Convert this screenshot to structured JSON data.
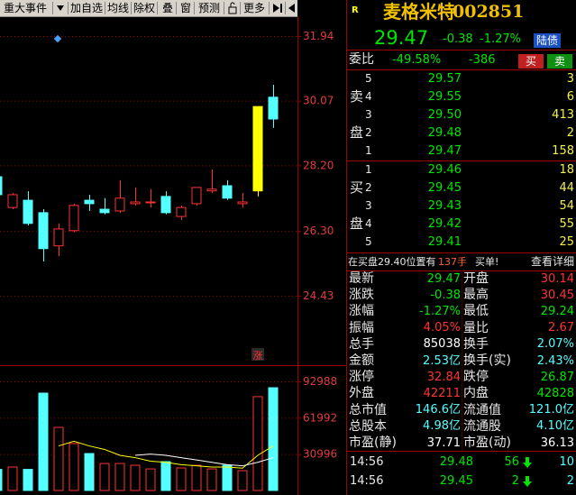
{
  "toolbar": [
    "重大事件",
    "加自选",
    "均线",
    "除权",
    "叠",
    "窗",
    "预测",
    "更多"
  ],
  "chart_data": [
    {
      "type": "candlestick",
      "open": [
        27.87,
        26.98,
        27.19,
        26.83,
        25.87,
        26.31,
        27.19,
        26.93,
        26.88,
        27.09,
        27.14,
        27.3,
        26.72,
        27.09,
        27.46,
        27.61,
        27.09,
        27.46,
        30.17
      ],
      "high": [
        28.08,
        27.4,
        27.45,
        26.93,
        26.52,
        27.09,
        27.35,
        27.25,
        27.77,
        27.56,
        27.51,
        27.45,
        27.04,
        27.56,
        28.08,
        27.77,
        27.4,
        29.9,
        30.53
      ],
      "low": [
        27.3,
        26.93,
        26.46,
        25.42,
        25.58,
        26.26,
        26.88,
        26.78,
        26.83,
        27.04,
        26.98,
        26.78,
        26.62,
        27.04,
        27.4,
        27.2,
        26.98,
        27.3,
        29.28
      ],
      "close": [
        27.35,
        27.35,
        26.52,
        25.79,
        26.36,
        27.04,
        27.09,
        26.83,
        27.25,
        27.14,
        27.14,
        26.83,
        26.98,
        27.56,
        27.51,
        27.25,
        27.14,
        29.9,
        29.54
      ],
      "colors": [
        "#54ffff",
        "#ff3232",
        "#54ffff",
        "#54ffff",
        "#ff3232",
        "#ff3232",
        "#54ffff",
        "#54ffff",
        "#ff3232",
        "#ff3232",
        "#ff3232",
        "#54ffff",
        "#ff3232",
        "#ff3232",
        "#ff3232",
        "#54ffff",
        "#ff3232",
        "#ffff00",
        "#54ffff"
      ],
      "up_color": "#ff3232",
      "annotation": "涨",
      "ylim": [
        22.55,
        32.46
      ],
      "yticks": [
        31.94,
        30.07,
        {
          "value": 28.2,
          "label": "28.20"
        },
        {
          "value": 26.3,
          "label": "26.30"
        },
        24.43
      ],
      "grid": true
    },
    {
      "type": "bar",
      "values": [
        18000,
        20000,
        18000,
        83000,
        53800,
        40000,
        31500,
        23000,
        23000,
        21500,
        18400,
        24600,
        19200,
        21500,
        18400,
        21500,
        16900,
        80000,
        87600
      ],
      "colors": [
        "#54ffff",
        "#ff3232",
        "#54ffff",
        "#54ffff",
        "#ff3232",
        "#ff3232",
        "#54ffff",
        "#ff3232",
        "#ff3232",
        "#ff3232",
        "#ff3232",
        "#54ffff",
        "#ff3232",
        "#ff3232",
        "#ff3232",
        "#54ffff",
        "#ff3232",
        "#ff3232",
        "#54ffff"
      ],
      "up_color": "#ff3232",
      "series": [
        {
          "color": "#ffff00",
          "values": [
            null,
            null,
            null,
            null,
            38000,
            42000,
            38000,
            35000,
            30000,
            28000,
            25000,
            24000,
            22000,
            21000,
            20000,
            20000,
            19000,
            30000,
            38000
          ]
        },
        {
          "color": "#ffffff",
          "values": [
            null,
            null,
            null,
            null,
            null,
            null,
            null,
            null,
            null,
            30000,
            31000,
            30000,
            28000,
            26000,
            24000,
            22000,
            21000,
            24000,
            28000
          ]
        }
      ],
      "ylim": [
        0,
        103000
      ],
      "yticks": [
        92988,
        61992,
        30996
      ],
      "grid": true
    }
  ],
  "quote": {
    "badge": "R",
    "name": "麦格米特",
    "code": "002851",
    "price": "29.47",
    "change": "-0.38",
    "pct": "-1.27%",
    "tag": "陆债"
  },
  "order_ratio": {
    "label": "委比",
    "pct": "-49.58%",
    "diff": "-386",
    "buy": "买",
    "sell": "卖"
  },
  "asks": {
    "side": [
      "卖",
      "盘"
    ],
    "rows": [
      [
        "5",
        "29.57",
        "3"
      ],
      [
        "4",
        "29.55",
        "6"
      ],
      [
        "3",
        "29.50",
        "413"
      ],
      [
        "2",
        "29.48",
        "2"
      ],
      [
        "1",
        "29.47",
        "158"
      ]
    ]
  },
  "bids": {
    "side": [
      "买",
      "盘"
    ],
    "rows": [
      [
        "1",
        "29.46",
        "18"
      ],
      [
        "2",
        "29.45",
        "44"
      ],
      [
        "3",
        "29.43",
        "54"
      ],
      [
        "4",
        "29.42",
        "55"
      ],
      [
        "5",
        "29.41",
        "25"
      ]
    ]
  },
  "notice": {
    "text": "在买盘29.40位置有",
    "volume": "137手",
    "suffix": "买单!",
    "link": "查看详细"
  },
  "stats": [
    {
      "label": "最新",
      "value": "29.47",
      "color": "#00e600"
    },
    {
      "label": "开盘",
      "value": "30.14",
      "color": "#ff3232"
    },
    {
      "label": "涨跌",
      "value": "-0.38",
      "color": "#00e600"
    },
    {
      "label": "最高",
      "value": "30.45",
      "color": "#ff3232"
    },
    {
      "label": "涨幅",
      "value": "-1.27%",
      "color": "#00e600"
    },
    {
      "label": "最低",
      "value": "29.24",
      "color": "#00e600"
    },
    {
      "label": "振幅",
      "value": "4.05%",
      "color": "#ff3232"
    },
    {
      "label": "量比",
      "value": "2.67",
      "color": "#ff3232"
    },
    {
      "label": "总手",
      "value": "85038",
      "color": "#ffffff"
    },
    {
      "label": "换手",
      "value": "2.07%",
      "color": "#54ffff"
    },
    {
      "label": "金额",
      "value": "2.53亿",
      "color": "#54ffff"
    },
    {
      "label": "换手(实)",
      "value": "2.43%",
      "color": "#54ffff"
    },
    {
      "label": "涨停",
      "value": "32.84",
      "color": "#ff3232"
    },
    {
      "label": "跌停",
      "value": "26.87",
      "color": "#00e600"
    },
    {
      "label": "外盘",
      "value": "42211",
      "color": "#ff3232"
    },
    {
      "label": "内盘",
      "value": "42828",
      "color": "#00e600"
    },
    {
      "label": "总市值",
      "value": "146.6亿",
      "color": "#54ffff"
    },
    {
      "label": "流通值",
      "value": "121.0亿",
      "color": "#54ffff"
    },
    {
      "label": "总股本",
      "value": "4.98亿",
      "color": "#54ffff"
    },
    {
      "label": "流通股",
      "value": "4.10亿",
      "color": "#54ffff"
    },
    {
      "label": "市盈(静)",
      "value": "37.71",
      "color": "#ffffff"
    },
    {
      "label": "市盈(动)",
      "value": "36.13",
      "color": "#ffffff"
    }
  ],
  "trades": [
    {
      "time": "14:56",
      "price": "29.48",
      "volume": "56",
      "count": "10"
    },
    {
      "time": "14:56",
      "price": "29.45",
      "volume": "2",
      "count": "2"
    }
  ]
}
